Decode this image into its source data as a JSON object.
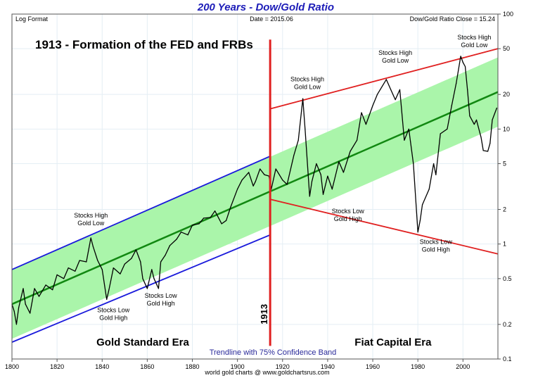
{
  "chart_data": {
    "type": "line",
    "title": "200 Years - Dow/Gold Ratio",
    "header_left": "Log Format",
    "header_center": "Date = 2015.06",
    "header_right": "Dow/Gold Ratio Close = 15.24",
    "headline": "1913 - Formation of the FED and FRBs",
    "footer_caption": "Trendline with 75% Confidence Band",
    "credit": "world gold charts @ www.goldchartsrus.com",
    "xlabel": "",
    "ylabel": "",
    "xlim": [
      1800,
      2015.5
    ],
    "ylim": [
      0.1,
      100
    ],
    "yscale": "log",
    "grid": true,
    "x_ticks": [
      "1800",
      "1820",
      "1840",
      "1860",
      "1880",
      "1900",
      "1920",
      "1940",
      "1960",
      "1980",
      "2000"
    ],
    "y_ticks": [
      "100",
      "50",
      "20",
      "10",
      "5",
      "2",
      "1",
      "0.5",
      "0.2",
      "0.1"
    ],
    "series": [
      {
        "name": "Dow/Gold Ratio",
        "color": "#000000",
        "x": [
          1800,
          1801,
          1802,
          1803,
          1805,
          1806,
          1808,
          1810,
          1812,
          1815,
          1818,
          1820,
          1823,
          1825,
          1828,
          1830,
          1833,
          1835,
          1836,
          1838,
          1840,
          1842,
          1843,
          1845,
          1848,
          1850,
          1853,
          1855,
          1857,
          1858,
          1860,
          1862,
          1863,
          1865,
          1866,
          1868,
          1870,
          1873,
          1875,
          1878,
          1880,
          1883,
          1885,
          1888,
          1890,
          1893,
          1895,
          1897,
          1900,
          1902,
          1905,
          1907,
          1908,
          1910,
          1912,
          1914,
          1915,
          1917,
          1920,
          1922,
          1925,
          1927,
          1929,
          1930,
          1932,
          1933,
          1935,
          1937,
          1938,
          1940,
          1942,
          1945,
          1947,
          1950,
          1953,
          1955,
          1957,
          1960,
          1962,
          1966,
          1968,
          1970,
          1972,
          1974,
          1976,
          1978,
          1980,
          1981,
          1982,
          1985,
          1987,
          1988,
          1990,
          1993,
          1995,
          1997,
          1999,
          2000,
          2001,
          2002,
          2003,
          2005,
          2006,
          2008,
          2009,
          2011,
          2012,
          2013,
          2015
        ],
        "values": [
          0.3,
          0.26,
          0.2,
          0.28,
          0.41,
          0.3,
          0.25,
          0.41,
          0.35,
          0.44,
          0.4,
          0.54,
          0.5,
          0.62,
          0.58,
          0.72,
          0.7,
          1.13,
          0.95,
          0.72,
          0.6,
          0.33,
          0.4,
          0.62,
          0.55,
          0.67,
          0.75,
          0.89,
          0.7,
          0.5,
          0.41,
          0.6,
          0.5,
          0.41,
          0.7,
          0.8,
          0.97,
          1.1,
          1.27,
          1.2,
          1.46,
          1.5,
          1.68,
          1.7,
          1.94,
          1.5,
          1.6,
          2.1,
          3.0,
          3.6,
          4.2,
          3.2,
          3.5,
          4.5,
          4.0,
          3.9,
          3.0,
          4.5,
          3.6,
          3.3,
          5.9,
          8.0,
          18.4,
          10.0,
          2.6,
          3.5,
          5.0,
          4.0,
          2.7,
          3.9,
          3.0,
          5.2,
          4.2,
          6.4,
          8.0,
          13.9,
          11.0,
          16.0,
          20.0,
          27.0,
          22.0,
          18.0,
          22.0,
          8.0,
          10.0,
          5.0,
          1.27,
          1.6,
          2.2,
          3.0,
          5.0,
          4.0,
          9.1,
          10.0,
          16.0,
          25.0,
          43.0,
          38.0,
          35.0,
          22.0,
          13.0,
          11.0,
          12.0,
          8.5,
          6.5,
          6.4,
          7.5,
          12.0,
          15.24
        ]
      }
    ],
    "trendline": {
      "name": "Trendline",
      "color": "#118811",
      "start": [
        1800,
        0.3
      ],
      "end": [
        2015.5,
        21
      ]
    },
    "confidence_band": {
      "name": "75% Confidence Band",
      "color": "#aaf5aa",
      "factor": 2.0
    },
    "channels": [
      {
        "name": "gold-standard-upper",
        "color": "#1a1adb",
        "start": [
          1800,
          0.6
        ],
        "end": [
          1914.5,
          5.8
        ]
      },
      {
        "name": "gold-standard-lower",
        "color": "#1a1adb",
        "start": [
          1800,
          0.14
        ],
        "end": [
          1914.5,
          1.2
        ]
      },
      {
        "name": "fiat-upper",
        "color": "#e02020",
        "start": [
          1914.5,
          15
        ],
        "end": [
          2015.5,
          50
        ]
      },
      {
        "name": "fiat-lower",
        "color": "#e02020",
        "start": [
          1914.5,
          2.45
        ],
        "end": [
          2015.5,
          0.82
        ]
      }
    ],
    "vline": {
      "x": 1914.5,
      "label": "1913",
      "color": "#e02020",
      "from": 0.13,
      "to": 60
    },
    "annotations": [
      {
        "lines": [
          "Stocks High",
          "Gold Low"
        ],
        "x": 1835,
        "y": 1.7
      },
      {
        "lines": [
          "Stocks Low",
          "Gold High"
        ],
        "x": 1845,
        "y": 0.255
      },
      {
        "lines": [
          "Stocks Low",
          "Gold High"
        ],
        "x": 1866,
        "y": 0.34
      },
      {
        "lines": [
          "Stocks High",
          "Gold Low"
        ],
        "x": 1931,
        "y": 26
      },
      {
        "lines": [
          "Stocks Low",
          "Gold High"
        ],
        "x": 1949,
        "y": 1.85
      },
      {
        "lines": [
          "Stocks High",
          "Gold Low"
        ],
        "x": 1970,
        "y": 44
      },
      {
        "lines": [
          "Stocks Low",
          "Gold High"
        ],
        "x": 1988,
        "y": 1.0
      },
      {
        "lines": [
          "Stocks High",
          "Gold Low"
        ],
        "x": 2005,
        "y": 60
      }
    ],
    "era_labels": [
      {
        "text": "Gold Standard Era",
        "x": 1858,
        "y": 0.14
      },
      {
        "text": "Fiat Capital Era",
        "x": 1969,
        "y": 0.14
      }
    ]
  }
}
